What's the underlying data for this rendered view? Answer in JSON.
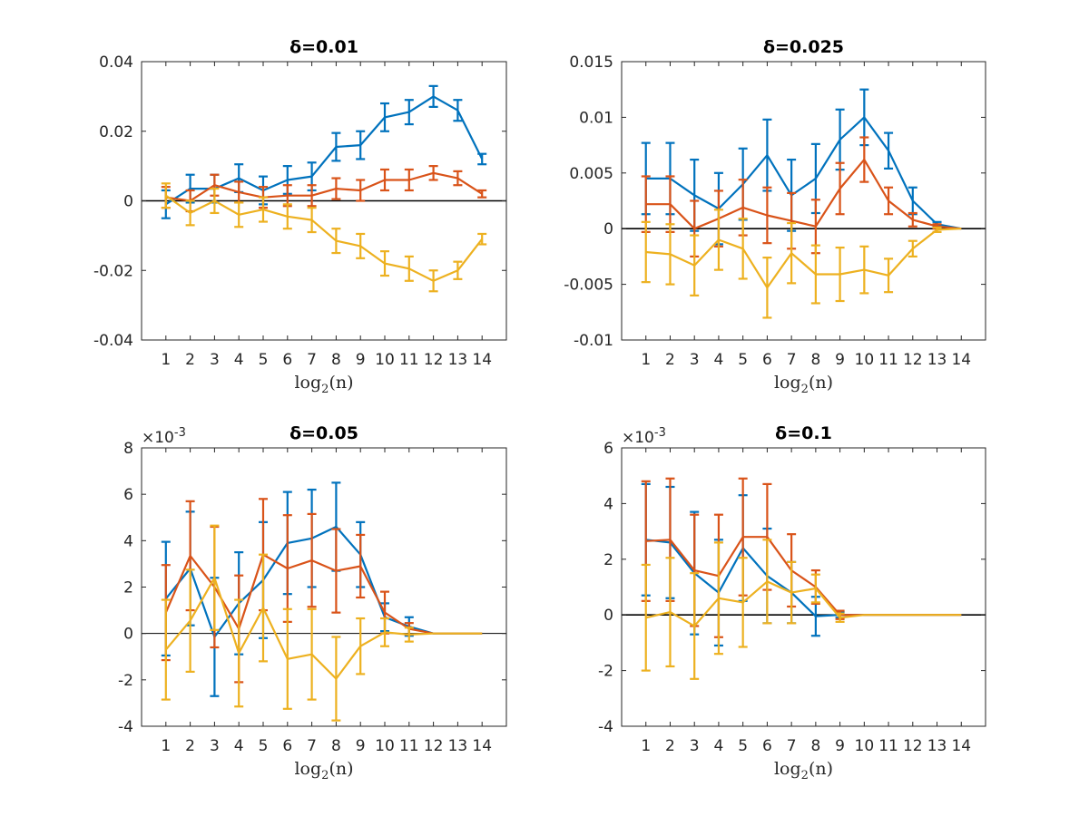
{
  "colors": {
    "series1": "#0072BD",
    "series2": "#D95319",
    "series3": "#EDB120"
  },
  "chart_data": [
    {
      "type": "line",
      "title": "δ=0.01",
      "xlabel": "log2(n)",
      "ylabel": "",
      "x": [
        1,
        2,
        3,
        4,
        5,
        6,
        7,
        8,
        9,
        10,
        11,
        12,
        13,
        14
      ],
      "xticks": [
        "1",
        "2",
        "3",
        "4",
        "5",
        "6",
        "7",
        "8",
        "9",
        "10",
        "11",
        "12",
        "13",
        "14"
      ],
      "xlim": [
        0,
        15
      ],
      "ylim": [
        -0.04,
        0.04
      ],
      "yticks": [
        -0.04,
        -0.02,
        0,
        0.02,
        0.04
      ],
      "yticklabels": [
        "-0.04",
        "-0.02",
        "0",
        "0.02",
        "0.04"
      ],
      "exponent_label": "",
      "series": [
        {
          "values": [
            -0.001,
            0.0035,
            0.0035,
            0.0065,
            0.003,
            0.006,
            0.007,
            0.0155,
            0.016,
            0.024,
            0.0255,
            0.03,
            0.026,
            0.012
          ],
          "errors": [
            0.004,
            0.004,
            0.004,
            0.004,
            0.004,
            0.004,
            0.004,
            0.004,
            0.004,
            0.004,
            0.0035,
            0.003,
            0.003,
            0.0015
          ]
        },
        {
          "values": [
            0.001,
            0.0,
            0.0045,
            0.0025,
            0.001,
            0.0015,
            0.0015,
            0.0035,
            0.003,
            0.006,
            0.006,
            0.008,
            0.0065,
            0.002
          ],
          "errors": [
            0.003,
            0.003,
            0.003,
            0.003,
            0.003,
            0.003,
            0.003,
            0.003,
            0.003,
            0.003,
            0.003,
            0.002,
            0.002,
            0.001
          ]
        },
        {
          "values": [
            0.0015,
            -0.0035,
            0.0,
            -0.004,
            -0.0025,
            -0.0045,
            -0.0055,
            -0.0115,
            -0.013,
            -0.018,
            -0.0195,
            -0.023,
            -0.02,
            -0.011
          ],
          "errors": [
            0.0035,
            0.0035,
            0.0035,
            0.0035,
            0.0035,
            0.0035,
            0.0035,
            0.0035,
            0.0035,
            0.0035,
            0.0035,
            0.003,
            0.0025,
            0.0015
          ]
        }
      ]
    },
    {
      "type": "line",
      "title": "δ=0.025",
      "xlabel": "log2(n)",
      "ylabel": "",
      "x": [
        1,
        2,
        3,
        4,
        5,
        6,
        7,
        8,
        9,
        10,
        11,
        12,
        13,
        14
      ],
      "xticks": [
        "1",
        "2",
        "3",
        "4",
        "5",
        "6",
        "7",
        "8",
        "9",
        "10",
        "11",
        "12",
        "13",
        "14"
      ],
      "xlim": [
        0,
        15
      ],
      "ylim": [
        -0.01,
        0.015
      ],
      "yticks": [
        -0.01,
        -0.005,
        0,
        0.005,
        0.01,
        0.015
      ],
      "yticklabels": [
        "-0.01",
        "-0.005",
        "0",
        "0.005",
        "0.01",
        "0.015"
      ],
      "exponent_label": "",
      "series": [
        {
          "values": [
            0.0045,
            0.0045,
            0.003,
            0.0018,
            0.004,
            0.0066,
            0.003,
            0.0045,
            0.008,
            0.01,
            0.007,
            0.0025,
            0.0004,
            0.0
          ],
          "errors": [
            0.0032,
            0.0032,
            0.0032,
            0.0032,
            0.0032,
            0.0032,
            0.0032,
            0.0031,
            0.0027,
            0.0025,
            0.0016,
            0.0012,
            0.0002,
            0.0
          ]
        },
        {
          "values": [
            0.0022,
            0.0022,
            0.0,
            0.0009,
            0.0019,
            0.0012,
            0.0007,
            0.0002,
            0.0036,
            0.0062,
            0.0025,
            0.0008,
            0.0002,
            0.0
          ],
          "errors": [
            0.0025,
            0.0025,
            0.0025,
            0.0025,
            0.0025,
            0.0025,
            0.0025,
            0.0024,
            0.0023,
            0.002,
            0.0012,
            0.0006,
            0.0002,
            0.0
          ]
        },
        {
          "values": [
            -0.0021,
            -0.0023,
            -0.0033,
            -0.001,
            -0.0018,
            -0.0053,
            -0.0022,
            -0.0041,
            -0.0041,
            -0.0037,
            -0.0042,
            -0.0018,
            -0.0001,
            0.0
          ],
          "errors": [
            0.0027,
            0.0027,
            0.0027,
            0.0027,
            0.0027,
            0.0027,
            0.0027,
            0.0026,
            0.0024,
            0.0021,
            0.0015,
            0.0007,
            0.0002,
            0.0
          ]
        }
      ]
    },
    {
      "type": "line",
      "title": "δ=0.05",
      "xlabel": "log2(n)",
      "ylabel": "",
      "x": [
        1,
        2,
        3,
        4,
        5,
        6,
        7,
        8,
        9,
        10,
        11,
        12,
        13,
        14
      ],
      "xticks": [
        "1",
        "2",
        "3",
        "4",
        "5",
        "6",
        "7",
        "8",
        "9",
        "10",
        "11",
        "12",
        "13",
        "14"
      ],
      "xlim": [
        0,
        15
      ],
      "ylim": [
        -4,
        8
      ],
      "yticks": [
        -4,
        -2,
        0,
        2,
        4,
        6,
        8
      ],
      "yticklabels": [
        "-4",
        "-2",
        "0",
        "2",
        "4",
        "6",
        "8"
      ],
      "exponent_label": "-3",
      "series": [
        {
          "values": [
            1.5,
            2.8,
            -0.15,
            1.3,
            2.3,
            3.9,
            4.1,
            4.6,
            3.4,
            0.7,
            0.3,
            0.0,
            0.0,
            0.0
          ],
          "errors": [
            2.45,
            2.45,
            2.55,
            2.2,
            2.5,
            2.2,
            2.1,
            1.9,
            1.4,
            0.6,
            0.4,
            0.0,
            0.0,
            0.0
          ]
        },
        {
          "values": [
            0.9,
            3.35,
            2.0,
            0.2,
            3.4,
            2.8,
            3.15,
            2.7,
            2.9,
            0.9,
            0.2,
            0.0,
            0.0,
            0.0
          ],
          "errors": [
            2.05,
            2.35,
            2.6,
            2.3,
            2.4,
            2.3,
            2.0,
            1.8,
            1.35,
            0.9,
            0.25,
            0.0,
            0.0,
            0.0
          ]
        },
        {
          "values": [
            -0.7,
            0.55,
            2.4,
            -0.85,
            1.1,
            -1.1,
            -0.9,
            -1.95,
            -0.55,
            0.05,
            -0.05,
            0.0,
            0.0,
            0.0
          ],
          "errors": [
            2.15,
            2.2,
            2.25,
            2.3,
            2.3,
            2.15,
            1.95,
            1.8,
            1.2,
            0.6,
            0.3,
            0.0,
            0.0,
            0.0
          ]
        }
      ]
    },
    {
      "type": "line",
      "title": "δ=0.1",
      "xlabel": "log2(n)",
      "ylabel": "",
      "x": [
        1,
        2,
        3,
        4,
        5,
        6,
        7,
        8,
        9,
        10,
        11,
        12,
        13,
        14
      ],
      "xticks": [
        "1",
        "2",
        "3",
        "4",
        "5",
        "6",
        "7",
        "8",
        "9",
        "10",
        "11",
        "12",
        "13",
        "14"
      ],
      "xlim": [
        0,
        15
      ],
      "ylim": [
        -4,
        6
      ],
      "yticks": [
        -4,
        -2,
        0,
        2,
        4,
        6
      ],
      "yticklabels": [
        "-4",
        "-2",
        "0",
        "2",
        "4",
        "6"
      ],
      "exponent_label": "-3",
      "series": [
        {
          "values": [
            2.7,
            2.6,
            1.5,
            0.8,
            2.4,
            1.4,
            0.8,
            -0.05,
            0.0,
            0.0,
            0.0,
            0.0,
            0.0,
            0.0
          ],
          "errors": [
            2.0,
            2.0,
            2.2,
            1.9,
            1.9,
            1.7,
            1.1,
            0.7,
            0.1,
            0.0,
            0.0,
            0.0,
            0.0,
            0.0
          ]
        },
        {
          "values": [
            2.65,
            2.7,
            1.6,
            1.4,
            2.8,
            2.8,
            1.6,
            1.0,
            0.0,
            0.0,
            0.0,
            0.0,
            0.0,
            0.0
          ],
          "errors": [
            2.15,
            2.2,
            2.0,
            2.2,
            2.1,
            1.9,
            1.3,
            0.6,
            0.15,
            0.0,
            0.0,
            0.0,
            0.0,
            0.0
          ]
        },
        {
          "values": [
            -0.1,
            0.1,
            -0.4,
            0.6,
            0.45,
            1.2,
            0.8,
            0.95,
            -0.1,
            0.0,
            0.0,
            0.0,
            0.0,
            0.0
          ],
          "errors": [
            1.9,
            1.95,
            1.9,
            2.0,
            1.6,
            1.5,
            1.1,
            0.5,
            0.15,
            0.0,
            0.0,
            0.0,
            0.0,
            0.0
          ]
        }
      ]
    }
  ]
}
